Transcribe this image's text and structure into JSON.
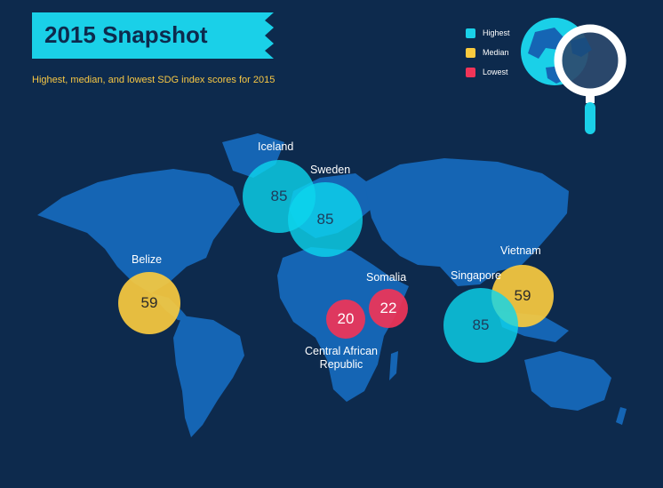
{
  "title": "2015 Snapshot",
  "subtitle": "Highest, median, and lowest SDG index scores for 2015",
  "legend": [
    {
      "label": "Highest",
      "color": "#1ad0e8"
    },
    {
      "label": "Median",
      "color": "#f9ca3f"
    },
    {
      "label": "Lowest",
      "color": "#f03458"
    }
  ],
  "countries": {
    "iceland": {
      "name": "Iceland",
      "score": "85",
      "level": "Highest"
    },
    "sweden": {
      "name": "Sweden",
      "score": "85",
      "level": "Highest"
    },
    "belize": {
      "name": "Belize",
      "score": "59",
      "level": "Median"
    },
    "somalia": {
      "name": "Somalia",
      "score": "22",
      "level": "Lowest"
    },
    "car": {
      "name_line1": "Central African",
      "name_line2": "Republic",
      "score": "20",
      "level": "Lowest"
    },
    "singapore": {
      "name": "Singapore",
      "score": "85",
      "level": "Highest"
    },
    "vietnam": {
      "name": "Vietnam",
      "score": "59",
      "level": "Median"
    }
  },
  "colors": {
    "background": "#0d2a4d",
    "land": "#1565b4",
    "banner": "#1ad0e8",
    "accent": "#f7c744"
  }
}
